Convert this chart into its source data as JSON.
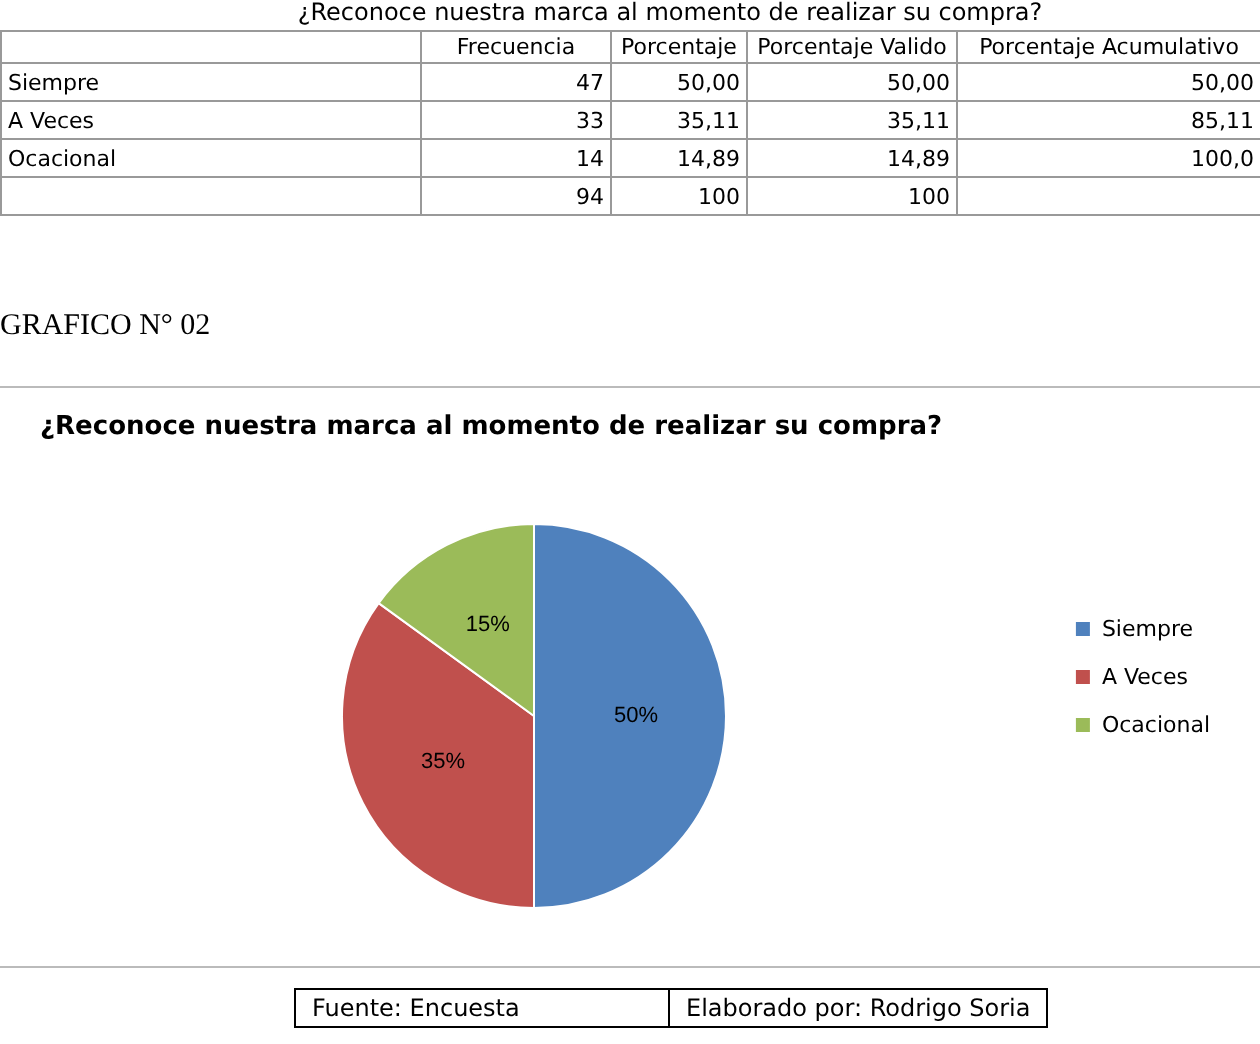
{
  "chart_data": [
    {
      "type": "other",
      "title": "¿Reconoce nuestra marca al momento de realizar su compra?",
      "categories": [
        "Frecuencia",
        "Porcentaje",
        "Porcentaje Valido",
        "Porcentaje Acumulativo"
      ],
      "y_categories": [
        "Siempre",
        "A Veces",
        "Ocacional",
        null
      ],
      "cell_labels": [
        [
          "47",
          "50,00",
          "50,00",
          "50,00"
        ],
        [
          "33",
          "35,11",
          "35,11",
          "85,11"
        ],
        [
          "14",
          "14,89",
          "14,89",
          "100,0"
        ],
        [
          "94",
          "100",
          "100",
          null
        ]
      ]
    },
    {
      "type": "pie",
      "title": "¿Reconoce nuestra marca al momento de realizar su compra?",
      "categories": [
        "Siempre",
        "A Veces",
        "Ocacional"
      ],
      "values": [
        50,
        35,
        15
      ],
      "colors": [
        "#4f81bd",
        "#c0504d",
        "#9bbb59"
      ],
      "value_labels": [
        "50%",
        "35%",
        "15%"
      ],
      "legend": "right",
      "annotations": [
        "GRAFICO N° 02",
        "Fuente: Encuesta",
        "Elaborado por: Rodrigo Soria"
      ]
    }
  ]
}
